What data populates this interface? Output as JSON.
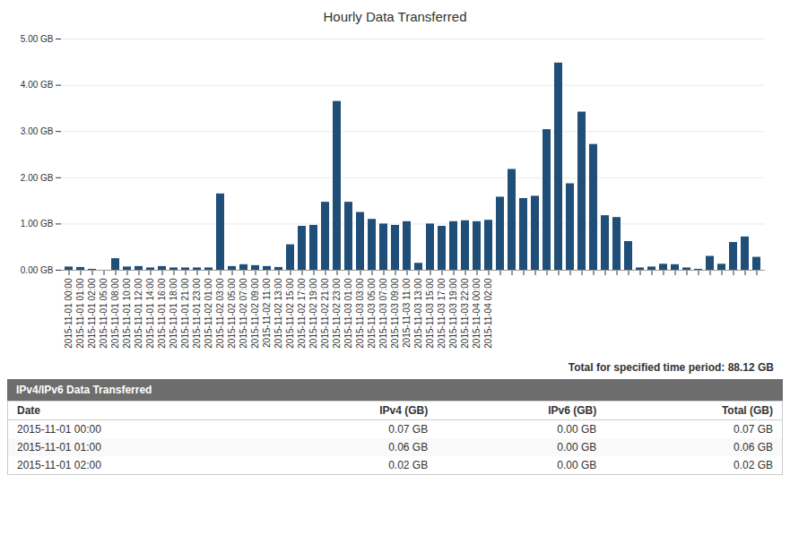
{
  "chart_data": {
    "type": "bar",
    "title": "Hourly Data Transferred",
    "annotations": [
      "Total for specified time period: 88.12 GB"
    ],
    "table": {
      "header": "IPv4/IPv6 Data Transferred",
      "columns": [
        "Date",
        "IPv4 (GB)",
        "IPv6 (GB)",
        "Total (GB)"
      ],
      "rows": [
        [
          "2015-11-01 00:00",
          "0.07 GB",
          "0.00 GB",
          "0.07 GB"
        ],
        [
          "2015-11-01 01:00",
          "0.06 GB",
          "0.00 GB",
          "0.06 GB"
        ],
        [
          "2015-11-01 02:00",
          "0.02 GB",
          "0.00 GB",
          "0.02 GB"
        ]
      ]
    },
    "categories": [
      "2015-11-01 00:00",
      "2015-11-01 01:00",
      "2015-11-01 02:00",
      "2015-11-01 05:00",
      "2015-11-01 08:00",
      "2015-11-01 10:00",
      "2015-11-01 12:00",
      "2015-11-01 14:00",
      "2015-11-01 16:00",
      "2015-11-01 18:00",
      "2015-11-01 21:00",
      "2015-11-01 23:00",
      "2015-11-02 01:00",
      "2015-11-02 03:00",
      "2015-11-02 05:00",
      "2015-11-02 07:00",
      "2015-11-02 09:00",
      "2015-11-02 11:00",
      "2015-11-02 13:00",
      "2015-11-02 15:00",
      "2015-11-02 17:00",
      "2015-11-02 19:00",
      "2015-11-02 21:00",
      "2015-11-02 23:00",
      "2015-11-03 01:00",
      "2015-11-03 03:00",
      "2015-11-03 05:00",
      "2015-11-03 07:00",
      "2015-11-03 09:00",
      "2015-11-03 11:00",
      "2015-11-03 13:00",
      "2015-11-03 15:00",
      "2015-11-03 17:00",
      "2015-11-03 19:00",
      "2015-11-03 22:00",
      "2015-11-04 00:00",
      "2015-11-04 02:00",
      null,
      null,
      null,
      null,
      null,
      null,
      null,
      null,
      null,
      null,
      null,
      null,
      null,
      null,
      null,
      null,
      null,
      null,
      null,
      null,
      null,
      null,
      null
    ],
    "values": [
      0.07,
      0.06,
      0.02,
      0.0,
      0.25,
      0.07,
      0.08,
      0.05,
      0.08,
      0.05,
      0.05,
      0.05,
      0.05,
      1.65,
      0.08,
      0.12,
      0.1,
      0.08,
      0.06,
      0.55,
      0.95,
      0.97,
      1.47,
      3.65,
      1.47,
      1.25,
      1.1,
      1.0,
      0.97,
      1.05,
      0.15,
      1.0,
      0.95,
      1.05,
      1.07,
      1.05,
      1.08,
      1.58,
      2.18,
      1.55,
      1.6,
      3.04,
      4.48,
      1.87,
      3.42,
      2.72,
      1.18,
      1.14,
      0.62,
      0.05,
      0.07,
      0.13,
      0.12,
      0.05,
      0.02,
      0.3,
      0.13,
      0.6,
      0.72,
      0.28
    ],
    "color": "#1F4E79",
    "ylim": [
      0,
      5.0
    ],
    "yticks": [
      {
        "value": 0,
        "label": "0.00 GB"
      },
      {
        "value": 1.0,
        "label": "1.00 GB"
      },
      {
        "value": 2.0,
        "label": "2.00 GB"
      },
      {
        "value": 3.0,
        "label": "3.00 GB"
      },
      {
        "value": 4.0,
        "label": "4.00 GB"
      },
      {
        "value": 5.0,
        "label": "5.00 GB"
      }
    ],
    "grid": true
  }
}
